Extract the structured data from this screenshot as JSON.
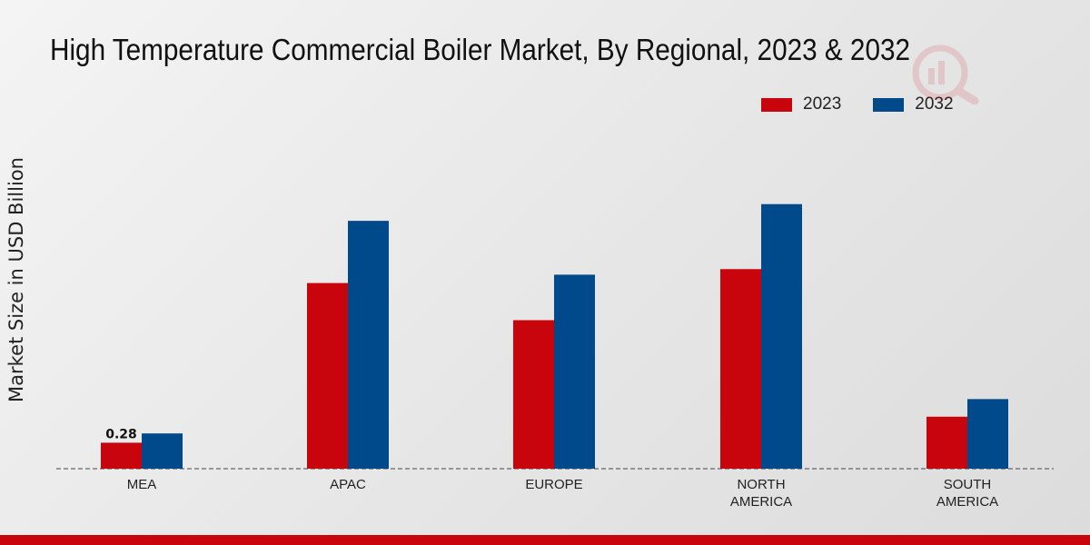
{
  "chart_data": {
    "type": "bar",
    "title": "High Temperature Commercial Boiler Market, By Regional, 2023 & 2032",
    "xlabel": "",
    "ylabel": "Market Size in USD Billion",
    "categories": [
      [
        "MEA"
      ],
      [
        "APAC"
      ],
      [
        "EUROPE"
      ],
      [
        "NORTH",
        "AMERICA"
      ],
      [
        "SOUTH",
        "AMERICA"
      ]
    ],
    "series": [
      {
        "name": "2023",
        "color": "#c8050c",
        "values": [
          0.28,
          2.0,
          1.6,
          2.15,
          0.56
        ]
      },
      {
        "name": "2032",
        "color": "#004a8c",
        "values": [
          0.38,
          2.67,
          2.09,
          2.85,
          0.75
        ]
      }
    ],
    "data_labels": [
      {
        "series": 0,
        "index": 0,
        "text": "0.28"
      }
    ],
    "ylim": [
      0,
      5
    ],
    "grid": false,
    "legend_position": "top-right"
  }
}
